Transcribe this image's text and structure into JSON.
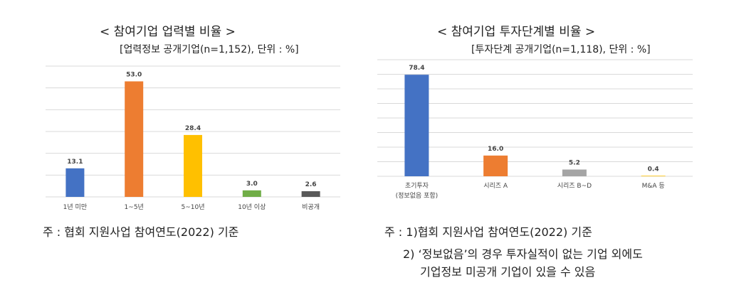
{
  "chart_data": [
    {
      "type": "bar",
      "title": "< 참여기업 업력별 비율 >",
      "subtitle": "[업력정보 공개기업(n=1,152),  단위 : %]",
      "categories": [
        "1년 미만",
        "1~5년",
        "5~10년",
        "10년 이상",
        "비공개"
      ],
      "values": [
        13.1,
        53.0,
        28.4,
        3.0,
        2.6
      ],
      "value_labels": [
        "13.1",
        "53.0",
        "28.4",
        "3.0",
        "2.6"
      ],
      "colors": [
        "#4472C4",
        "#ED7D31",
        "#FFC000",
        "#70AD47",
        "#595959"
      ],
      "ylim": [
        0,
        60
      ],
      "grid": true,
      "legend": "none"
    },
    {
      "type": "bar",
      "title": "< 참여기업 투자단계별 비율 >",
      "subtitle": "[투자단계 공개기업(n=1,118),  단위 : %]",
      "categories": [
        "초기투자\n(정보없음 포함)",
        "시리즈 A",
        "시리즈 B~D",
        "M&A 등"
      ],
      "values": [
        78.4,
        16.0,
        5.2,
        0.4
      ],
      "value_labels": [
        "78.4",
        "16.0",
        "5.2",
        "0.4"
      ],
      "colors": [
        "#4472C4",
        "#ED7D31",
        "#A5A5A5",
        "#FFC000"
      ],
      "ylim": [
        0,
        90
      ],
      "grid": true,
      "legend": "none"
    }
  ],
  "notes": {
    "left": "주 : 협회 지원사업 참여연도(2022) 기준",
    "right_1": "주 : 1)협회 지원사업 참여연도(2022) 기준",
    "right_2": "2) ‘정보없음’의 경우 투자실적이 없는 기업 외에도",
    "right_3": "기업정보 미공개 기업이 있을 수 있음"
  }
}
